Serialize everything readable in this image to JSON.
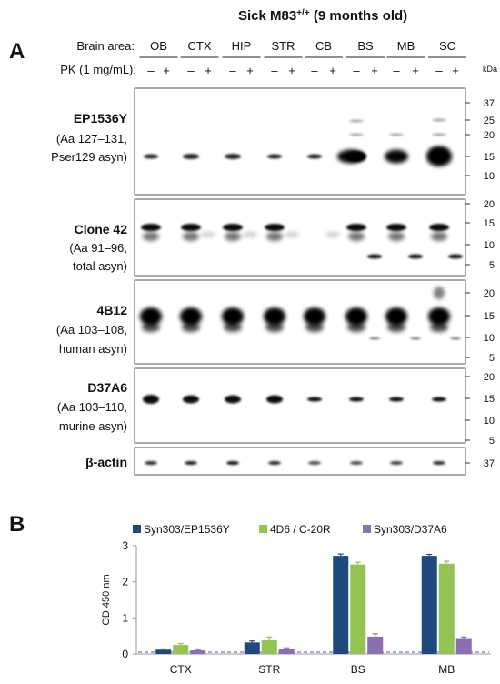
{
  "panelA": {
    "letter": "A",
    "title_main": "Sick M83",
    "title_sup": "+/+",
    "title_tail": " (9 months old)",
    "brain_area_label": "Brain area:",
    "areas": [
      "OB",
      "CTX",
      "HIP",
      "STR",
      "CB",
      "BS",
      "MB",
      "SC"
    ],
    "pk_label": "PK (1 mg/mL):",
    "pk_minus": "–",
    "pk_plus": "+",
    "kda_label": "kDa",
    "blots": [
      {
        "name": "EP1536Y",
        "line2": "(Aa 127–131,",
        "line3": "Pser129 asyn)",
        "markers": [
          "37",
          "25",
          "20",
          "15",
          "10"
        ]
      },
      {
        "name": "Clone 42",
        "line2": "(Aa 91–96,",
        "line3": "total asyn)",
        "markers": [
          "20",
          "15",
          "10",
          "5"
        ]
      },
      {
        "name": "4B12",
        "line2": "(Aa 103–108,",
        "line3": "human asyn)",
        "markers": [
          "20",
          "15",
          "10",
          "5"
        ]
      },
      {
        "name": "D37A6",
        "line2": "(Aa 103–110,",
        "line3": "murine asyn)",
        "markers": [
          "20",
          "15",
          "10",
          "5"
        ]
      },
      {
        "name": "β-actin",
        "line2": "",
        "line3": "",
        "markers": [
          "37"
        ]
      }
    ]
  },
  "panelB": {
    "letter": "B",
    "chart_data": {
      "type": "bar",
      "categories": [
        "CTX",
        "STR",
        "BS",
        "MB"
      ],
      "series": [
        {
          "name": "Syn303/EP1536Y",
          "values": [
            0.12,
            0.32,
            2.72,
            2.72
          ],
          "errors": [
            0.02,
            0.04,
            0.05,
            0.04
          ]
        },
        {
          "name": "4D6 / C-20R",
          "values": [
            0.25,
            0.38,
            2.48,
            2.5
          ],
          "errors": [
            0.04,
            0.09,
            0.06,
            0.07
          ]
        },
        {
          "name": "Syn303/D37A6",
          "values": [
            0.1,
            0.15,
            0.48,
            0.44
          ],
          "errors": [
            0.02,
            0.02,
            0.08,
            0.03
          ]
        }
      ],
      "colors": [
        "#1F497D",
        "#92C353",
        "#8B6FB0"
      ],
      "ylabel": "OD 450 nm",
      "ylim": [
        0,
        3
      ],
      "yticks": [
        "0",
        "1",
        "2",
        "3"
      ],
      "legend_position": "top",
      "baseline": "dashed line near 0"
    }
  }
}
